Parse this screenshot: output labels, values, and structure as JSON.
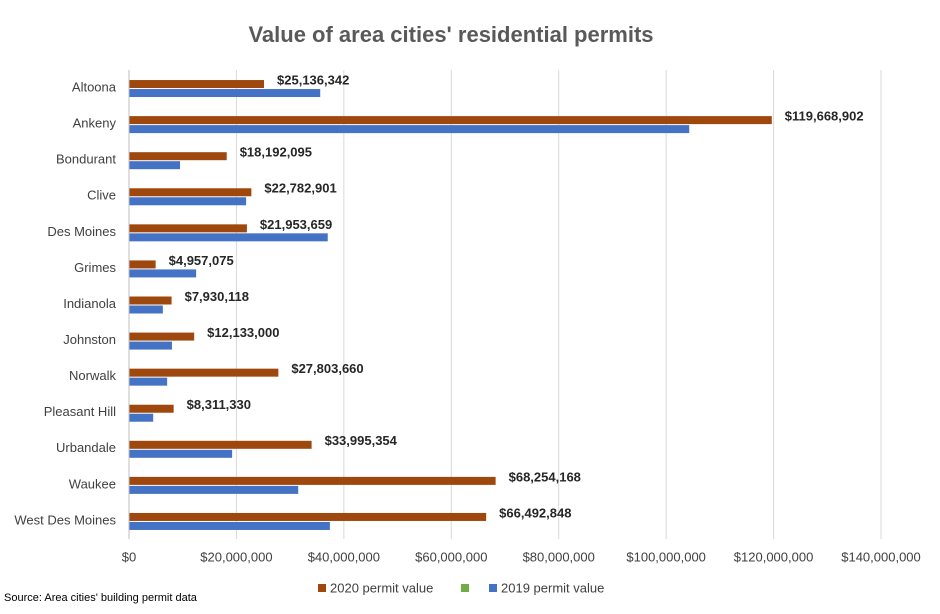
{
  "chart_data": {
    "type": "hbar",
    "title": "Value of area cities' residential permits",
    "categories": [
      "Altoona",
      "Ankeny",
      "Bondurant",
      "Clive",
      "Des Moines",
      "Grimes",
      "Indianola",
      "Johnston",
      "Norwalk",
      "Pleasant Hill",
      "Urbandale",
      "Waukee",
      "West Des Moines"
    ],
    "series": [
      {
        "name": "2020 permit value",
        "color": "#9e480e",
        "values": [
          25136342,
          119668902,
          18192095,
          22782901,
          21953659,
          4957075,
          7930118,
          12133000,
          27803660,
          8311330,
          33995354,
          68254168,
          66492848
        ],
        "value_labels": [
          "$25,136,342",
          "$119,668,902",
          "$18,192,095",
          "$22,782,901",
          "$21,953,659",
          "$4,957,075",
          "$7,930,118",
          "$12,133,000",
          "$27,803,660",
          "$8,311,330",
          "$33,995,354",
          "$68,254,168",
          "$66,492,848"
        ]
      },
      {
        "color": "#70ad47",
        "values": [
          null,
          null,
          null,
          null,
          null,
          null,
          null,
          null,
          null,
          null,
          null,
          null,
          null
        ]
      },
      {
        "name": "2019 permit value",
        "color": "#4472c4",
        "values": [
          35600000,
          104300000,
          9500000,
          21800000,
          37000000,
          12500000,
          6300000,
          8000000,
          7100000,
          4500000,
          19200000,
          31500000,
          37400000
        ]
      }
    ],
    "xlim": [
      0,
      140000000
    ],
    "xticks": [
      {
        "value": 0,
        "label": "$0"
      },
      {
        "value": 20000000,
        "label": "$20,000,000"
      },
      {
        "value": 40000000,
        "label": "$40,000,000"
      },
      {
        "value": 60000000,
        "label": "$60,000,000"
      },
      {
        "value": 80000000,
        "label": "$80,000,000"
      },
      {
        "value": 100000000,
        "label": "$100,000,000"
      },
      {
        "value": 120000000,
        "label": "$120,000,000"
      },
      {
        "value": 140000000,
        "label": "$140,000,000"
      }
    ],
    "grid": true,
    "legend": "bottom",
    "source": "Source: Area cities' building permit data"
  }
}
